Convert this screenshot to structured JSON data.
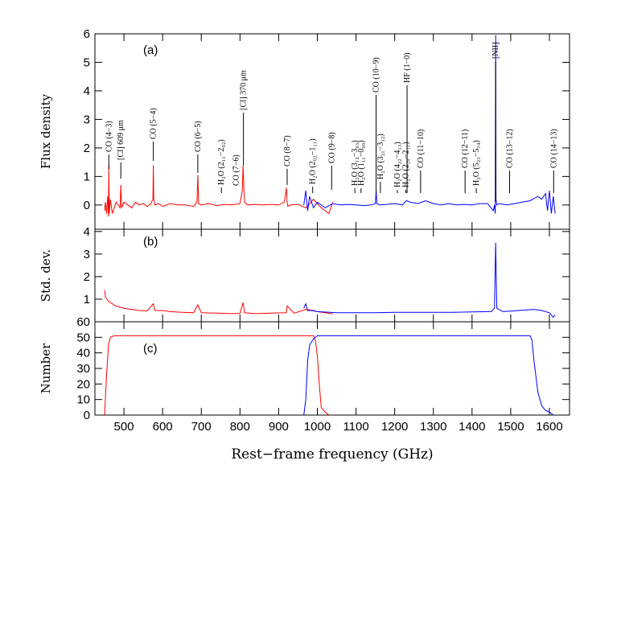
{
  "chart_data": [
    {
      "type": "line",
      "panel_label": "(a)",
      "ylabel": "Flux density",
      "xlim": [
        425,
        1652
      ],
      "ylim": [
        -0.85,
        6
      ],
      "yticks": [
        0,
        1,
        2,
        3,
        4,
        5,
        6
      ],
      "series": [
        {
          "color": "#ff0000",
          "x": [
            450,
            452,
            455,
            458,
            460,
            461,
            462,
            465,
            470,
            480,
            490,
            492,
            494,
            500,
            510,
            520,
            530,
            540,
            550,
            560,
            570,
            575,
            576,
            577,
            580,
            590,
            600,
            620,
            640,
            660,
            680,
            689,
            691,
            693,
            700,
            720,
            740,
            760,
            780,
            800,
            806,
            808,
            810,
            812,
            820,
            840,
            860,
            880,
            900,
            915,
            920,
            922,
            924,
            930,
            950,
            970,
            990,
            1010,
            1030,
            1040
          ],
          "values": [
            -0.2,
            0.1,
            -0.3,
            0.3,
            -0.4,
            1.4,
            -0.3,
            0.2,
            -0.3,
            0.1,
            -0.1,
            0.7,
            -0.1,
            0.1,
            0.0,
            -0.1,
            0.1,
            0.0,
            0.05,
            -0.05,
            0.05,
            0.2,
            1.4,
            0.2,
            0.0,
            0.05,
            -0.05,
            0.05,
            0.0,
            0.0,
            -0.05,
            0.1,
            1.05,
            0.05,
            0.0,
            0.05,
            -0.02,
            0.02,
            0.0,
            0.05,
            0.5,
            1.4,
            0.6,
            0.1,
            0.0,
            0.02,
            0.0,
            0.02,
            0.0,
            0.1,
            0.6,
            0.1,
            -0.05,
            0.0,
            0.02,
            -0.1,
            0.2,
            -0.1,
            -0.3,
            0.1
          ]
        },
        {
          "color": "#0000ff",
          "x": [
            965,
            970,
            975,
            980,
            990,
            1000,
            1020,
            1040,
            1060,
            1080,
            1100,
            1120,
            1140,
            1150,
            1152,
            1154,
            1160,
            1180,
            1200,
            1220,
            1230,
            1240,
            1260,
            1280,
            1300,
            1320,
            1340,
            1360,
            1380,
            1400,
            1420,
            1440,
            1455,
            1458,
            1460,
            1461,
            1462,
            1464,
            1470,
            1490,
            1510,
            1530,
            1550,
            1570,
            1580,
            1590,
            1595,
            1600,
            1605,
            1610,
            1615
          ],
          "values": [
            0.0,
            0.5,
            -0.2,
            0.3,
            -0.1,
            0.1,
            -0.1,
            0.05,
            0.0,
            0.02,
            0.0,
            -0.02,
            0.0,
            0.05,
            0.5,
            0.05,
            0.0,
            0.02,
            0.05,
            0.0,
            0.15,
            0.1,
            0.05,
            0.15,
            0.05,
            0.0,
            0.05,
            0.0,
            0.02,
            0.0,
            0.05,
            0.05,
            -0.2,
            0.0,
            -0.3,
            5.95,
            0.2,
            0.0,
            0.05,
            0.0,
            0.05,
            0.1,
            0.15,
            0.3,
            0.2,
            0.4,
            -0.2,
            0.5,
            -0.3,
            0.3,
            -0.3
          ]
        }
      ],
      "annotations": [
        {
          "text": "CO (4−3)",
          "x": 461
        },
        {
          "text": "[CI] 609 μm",
          "x": 492
        },
        {
          "text": "CO (5−4)",
          "x": 576
        },
        {
          "text": "CO (6−5)",
          "x": 691
        },
        {
          "text": "H₂O (2₁₁−2₀₂)",
          "x": 752
        },
        {
          "text": "CO (7−6)",
          "x": 790
        },
        {
          "text": "[CI] 370 μm",
          "x": 809
        },
        {
          "text": "CO (8−7)",
          "x": 922
        },
        {
          "text": "H₂O (2₀₂−1₁₁)",
          "x": 988
        },
        {
          "text": "CO (9−8)",
          "x": 1037
        },
        {
          "text": "H₂O (3₁₂−3₀₃)",
          "x": 1097
        },
        {
          "text": "H₂O (1₁₁−0₀₀)",
          "x": 1113
        },
        {
          "text": "CO (10−9)",
          "x": 1152
        },
        {
          "text": "H₂O (3₂₁−3₁₂)",
          "x": 1163
        },
        {
          "text": "H₂O (4₂₂−4₁₃)",
          "x": 1207
        },
        {
          "text": "H₂O (2₂₀−2₁₁)",
          "x": 1229
        },
        {
          "text": "HF (1−0)",
          "x": 1232
        },
        {
          "text": "CO (11−10)",
          "x": 1267
        },
        {
          "text": "CO (12−11)",
          "x": 1382
        },
        {
          "text": "H₂O (5₂₃−5₁₄)",
          "x": 1411
        },
        {
          "text": "[NII]",
          "x": 1461
        },
        {
          "text": "CO (13−12)",
          "x": 1497
        },
        {
          "text": "CO (14−13)",
          "x": 1611
        }
      ]
    },
    {
      "type": "line",
      "panel_label": "(b)",
      "ylabel": "Std. dev.",
      "xlim": [
        425,
        1652
      ],
      "ylim": [
        0,
        4.1
      ],
      "yticks": [
        1,
        2,
        3,
        4
      ],
      "series": [
        {
          "color": "#ff0000",
          "x": [
            450,
            452,
            460,
            470,
            480,
            500,
            520,
            540,
            560,
            576,
            580,
            600,
            620,
            650,
            680,
            691,
            700,
            740,
            780,
            800,
            808,
            812,
            840,
            880,
            920,
            922,
            940,
            970,
            990,
            1000,
            1020,
            1040
          ],
          "values": [
            1.4,
            1.1,
            0.9,
            0.8,
            0.7,
            0.6,
            0.55,
            0.5,
            0.48,
            0.8,
            0.5,
            0.5,
            0.45,
            0.42,
            0.4,
            0.75,
            0.4,
            0.38,
            0.36,
            0.37,
            0.85,
            0.4,
            0.36,
            0.38,
            0.4,
            0.7,
            0.38,
            0.55,
            0.5,
            0.45,
            0.4,
            0.35
          ]
        },
        {
          "color": "#0000ff",
          "x": [
            965,
            970,
            975,
            985,
            1000,
            1050,
            1100,
            1150,
            1200,
            1250,
            1300,
            1350,
            1400,
            1450,
            1458,
            1461,
            1464,
            1480,
            1520,
            1560,
            1580,
            1600,
            1605,
            1610,
            1615
          ],
          "values": [
            0.6,
            0.8,
            0.5,
            0.5,
            0.45,
            0.4,
            0.4,
            0.4,
            0.42,
            0.42,
            0.42,
            0.42,
            0.44,
            0.45,
            0.6,
            3.5,
            0.6,
            0.45,
            0.5,
            0.55,
            0.5,
            0.4,
            0.3,
            0.2,
            0.3
          ]
        }
      ]
    },
    {
      "type": "line",
      "panel_label": "(c)",
      "ylabel": "Number",
      "xlabel": "Rest−frame frequency (GHz)",
      "xlim": [
        425,
        1652
      ],
      "xticks": [
        500,
        600,
        700,
        800,
        900,
        1000,
        1100,
        1200,
        1300,
        1400,
        1500,
        1600
      ],
      "ylim": [
        0,
        60
      ],
      "yticks": [
        0,
        10,
        20,
        30,
        40,
        50,
        60
      ],
      "series": [
        {
          "color": "#ff0000",
          "x": [
            450,
            455,
            460,
            465,
            475,
            990,
            995,
            1000,
            1005,
            1010,
            1020,
            1030
          ],
          "values": [
            0,
            25,
            45,
            50,
            51,
            51,
            48,
            38,
            20,
            5,
            2,
            0
          ]
        },
        {
          "color": "#0000ff",
          "x": [
            965,
            970,
            975,
            980,
            990,
            1000,
            1540,
            1550,
            1555,
            1560,
            1570,
            1580,
            1590,
            1600,
            1605,
            1610
          ],
          "values": [
            0,
            10,
            35,
            45,
            49,
            51,
            51,
            51,
            48,
            35,
            15,
            6,
            3,
            2,
            1,
            0
          ]
        }
      ]
    }
  ]
}
